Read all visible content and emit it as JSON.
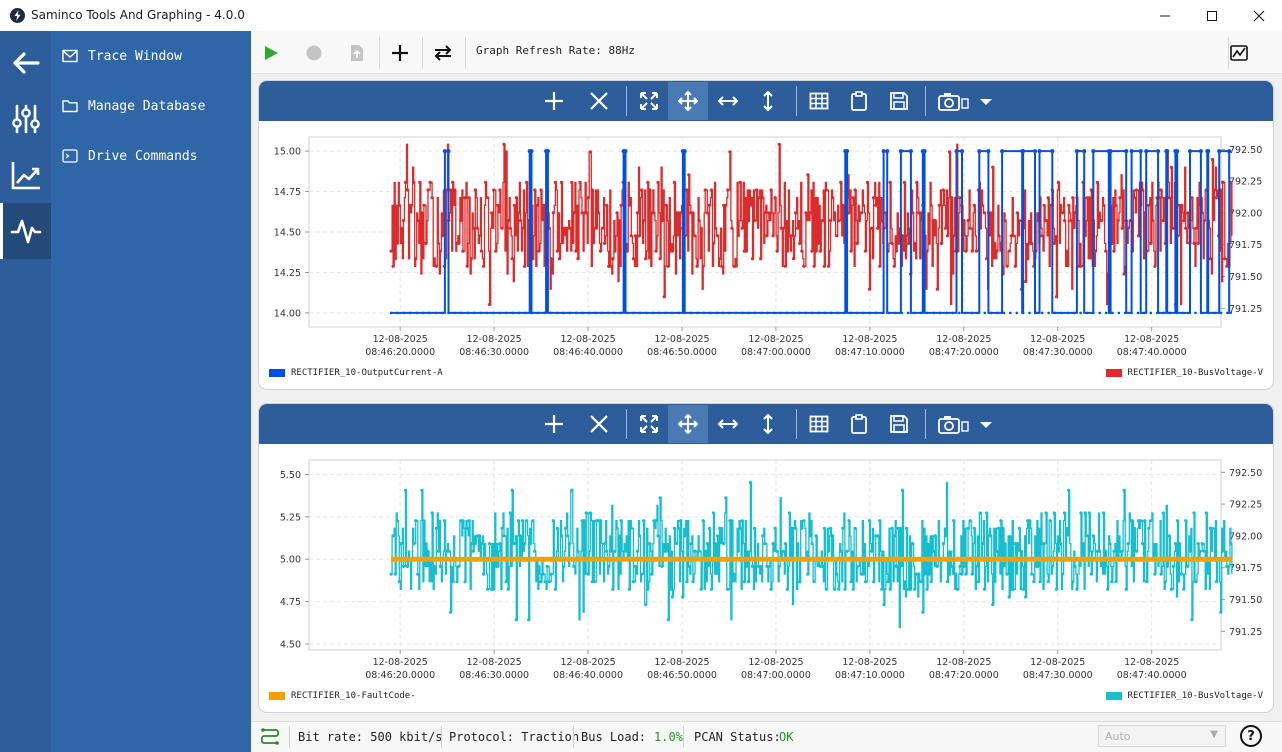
{
  "window": {
    "title": "Saminco Tools And Graphing - 4.0.0"
  },
  "nav": {
    "items": [
      {
        "label": "Trace Window",
        "icon": "mail-icon"
      },
      {
        "label": "Manage Database",
        "icon": "folder-icon"
      },
      {
        "label": "Drive Commands",
        "icon": "terminal-icon"
      }
    ]
  },
  "toolbar": {
    "refresh_rate": "Graph Refresh Rate: 88Hz"
  },
  "graphs": [
    {
      "legend_left": "RECTIFIER_10-OutputCurrent-A",
      "legend_right": "RECTIFIER_10-BusVoltage-V",
      "left_color": "#0050e6",
      "right_color": "#dc2b2b"
    },
    {
      "legend_left": "RECTIFIER_10-FaultCode-",
      "legend_right": "RECTIFIER_10-BusVoltage-V",
      "left_color": "#f5a000",
      "right_color": "#17becf"
    }
  ],
  "chart_data": [
    {
      "type": "line",
      "x_ticks": [
        "12-08-2025 08:46:20.0000",
        "12-08-2025 08:46:30.0000",
        "12-08-2025 08:46:40.0000",
        "12-08-2025 08:46:50.0000",
        "12-08-2025 08:47:00.0000",
        "12-08-2025 08:47:10.0000",
        "12-08-2025 08:47:20.0000",
        "12-08-2025 08:47:30.0000",
        "12-08-2025 08:47:40.0000"
      ],
      "y_left_ticks": [
        "15.00",
        "14.75",
        "14.50",
        "14.25",
        "14.00"
      ],
      "y_left_range": [
        13.95,
        15.05
      ],
      "y_right_ticks": [
        "792.50",
        "792.25",
        "792.00",
        "791.75",
        "791.50",
        "791.25"
      ],
      "y_right_range": [
        791.15,
        792.55
      ],
      "series": [
        {
          "name": "RECTIFIER_10-OutputCurrent-A",
          "axis": "left",
          "color": "#0050e6",
          "style": "step",
          "baseline": 14.0,
          "high": 15.0,
          "pulses": [
            [
              14.9,
              15.3
            ],
            [
              24.2,
              24.4
            ],
            [
              26.0,
              26.2
            ],
            [
              34.5,
              34.7
            ],
            [
              41.0,
              41.2
            ],
            [
              58.8,
              59.0
            ],
            [
              63.0,
              63.4
            ],
            [
              64.9,
              66.0
            ],
            [
              67.3,
              67.5
            ],
            [
              71.0,
              71.6
            ],
            [
              73.5,
              74.5
            ],
            [
              76.0,
              78.2
            ],
            [
              78.3,
              79.6
            ],
            [
              80.1,
              81.5
            ],
            [
              84.2,
              85.0
            ],
            [
              86.0,
              87.7
            ],
            [
              87.9,
              89.6
            ],
            [
              90.2,
              91.2
            ],
            [
              91.8,
              93.1
            ],
            [
              94.0,
              94.1
            ],
            [
              95.0,
              95.2
            ],
            [
              96.6,
              97.8
            ],
            [
              98.5,
              98.6
            ],
            [
              99.8,
              100.9
            ],
            [
              101.3,
              102.1
            ]
          ],
          "x_range": [
            9,
            101.2
          ],
          "seed": 7,
          "points": 1200
        },
        {
          "name": "RECTIFIER_10-BusVoltage-V",
          "axis": "right",
          "color": "#dc2b2b",
          "style": "noise",
          "center": 791.9,
          "spread": 0.48,
          "x_range": [
            9,
            101.2
          ],
          "seed": 13,
          "points": 820
        }
      ]
    },
    {
      "type": "line",
      "x_ticks": [
        "12-08-2025 08:46:20.0000",
        "12-08-2025 08:46:30.0000",
        "12-08-2025 08:46:40.0000",
        "12-08-2025 08:46:50.0000",
        "12-08-2025 08:47:00.0000",
        "12-08-2025 08:47:10.0000",
        "12-08-2025 08:47:20.0000",
        "12-08-2025 08:47:30.0000",
        "12-08-2025 08:47:40.0000"
      ],
      "y_left_ticks": [
        "5.50",
        "5.25",
        "5.00",
        "4.75",
        "4.50"
      ],
      "y_left_range": [
        4.5,
        5.55
      ],
      "y_right_ticks": [
        "792.50",
        "792.25",
        "792.00",
        "791.75",
        "791.50",
        "791.25"
      ],
      "y_right_range": [
        791.15,
        792.55
      ],
      "series": [
        {
          "name": "RECTIFIER_10-FaultCode-",
          "axis": "left",
          "color": "#f5a000",
          "style": "flat",
          "value": 5.0,
          "x_range": [
            9,
            101.2
          ]
        },
        {
          "name": "RECTIFIER_10-BusVoltage-V",
          "axis": "right",
          "color": "#17becf",
          "style": "noise",
          "center": 791.87,
          "spread": 0.42,
          "x_range": [
            9,
            101.2
          ],
          "seed": 29,
          "points": 820
        }
      ]
    }
  ],
  "status": {
    "bit_rate": "Bit rate: 500 kbit/s",
    "protocol": "Protocol: Traction",
    "bus_load_label": "Bus Load:",
    "bus_load_value": "1.0%",
    "pcan_label": "PCAN Status:",
    "pcan_value": "OK",
    "auto_select": "Auto",
    "ok_color": "#1a9a1a"
  }
}
